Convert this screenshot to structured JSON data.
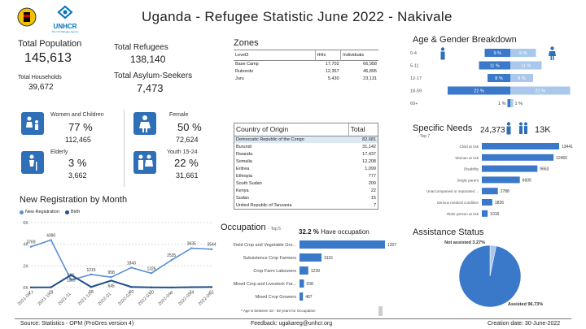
{
  "header": {
    "title": "Uganda - Refugee Statistic June 2022 - Nakivale",
    "unhcr_text": "UNHCR",
    "unhcr_sub": "The UN Refugee Agency"
  },
  "summary": {
    "total_population_label": "Total Population",
    "total_population": "145,613",
    "total_households_label": "Total Households",
    "total_households": "39,672",
    "total_refugees_label": "Total Refugees",
    "total_refugees": "138,140",
    "total_asylum_label": "Total Asylum-Seekers",
    "total_asylum": "7,473"
  },
  "demographics": {
    "women_children": {
      "label": "Women and Children",
      "pct": "77 %",
      "count": "112,465"
    },
    "elderly": {
      "label": "Elderly",
      "pct": "3 %",
      "count": "3,662"
    },
    "female": {
      "label": "Female",
      "pct": "50 %",
      "count": "72,624"
    },
    "youth": {
      "label": "Youth 15-24",
      "pct": "22 %",
      "count": "31,661"
    }
  },
  "zones": {
    "title": "Zones",
    "headers": [
      "Level3",
      "HHs",
      "Individuals"
    ],
    "rows": [
      [
        "Base Camp",
        "17,702",
        "66,958"
      ],
      [
        "Rubondo",
        "12,357",
        "46,895"
      ],
      [
        "Juru",
        "5,430",
        "23,131"
      ]
    ]
  },
  "origin": {
    "headers": [
      "Country of Origin",
      "Total"
    ],
    "rows": [
      [
        "Democratic Republic of the Congo",
        "82,681"
      ],
      [
        "Burundi",
        "31,142"
      ],
      [
        "Rwanda",
        "17,437"
      ],
      [
        "Somalia",
        "12,208"
      ],
      [
        "Eritrea",
        "1,099"
      ],
      [
        "Ethiopia",
        "777"
      ],
      [
        "South Sudan",
        "209"
      ],
      [
        "Kenya",
        "22"
      ],
      [
        "Sudan",
        "15"
      ],
      [
        "United Republic of Tanzania",
        "7"
      ]
    ]
  },
  "age_gender": {
    "title": "Age & Gender Breakdown",
    "groups": [
      "0-4",
      "5-11",
      "12-17",
      "18-59",
      "60+"
    ],
    "male": [
      9,
      11,
      8,
      22,
      1
    ],
    "female": [
      9,
      11,
      8,
      21,
      1
    ],
    "male_labels": [
      "9 %",
      "11 %",
      "8 %",
      "22 %",
      "1 %"
    ],
    "female_labels": [
      "9 %",
      "11 %",
      "8 %",
      "21 %",
      "1 %"
    ]
  },
  "specific_needs": {
    "title": "Specific Needs",
    "subtitle": "- Top 7",
    "persons": "24,373",
    "cases": "13K",
    "categories": [
      "Child at risk",
      "Woman at risk",
      "Disability",
      "Single parent",
      "Unaccompanied or separated ...",
      "Serious medical condition",
      "Older person at risk"
    ],
    "values": [
      13441,
      12466,
      9663,
      6605,
      2788,
      1826,
      1016
    ]
  },
  "registration": {
    "title": "New Registration by Month",
    "legend_new": "New Registration",
    "legend_birth": "Birth"
  },
  "chart_data": [
    {
      "type": "line",
      "title": "New Registration by Month",
      "x": [
        "2021-09",
        "2021-10",
        "2021-11",
        "2021-12",
        "2022-01",
        "2022-02",
        "2022-03",
        "2022-04",
        "2022-05",
        "2022-06"
      ],
      "yticks": [
        "0K",
        "2K",
        "4K",
        "6K"
      ],
      "ylim": [
        0,
        6000
      ],
      "series": [
        {
          "name": "New Registration",
          "values": [
            3769,
            4390,
            695,
            1215,
            958,
            1843,
            1325,
            2535,
            3635,
            3544
          ],
          "labels": [
            "3769",
            "4390",
            "695",
            "1215",
            "958",
            "1843",
            "1325",
            "2535",
            "3635",
            "3544"
          ]
        },
        {
          "name": "Birth",
          "values": [
            17,
            29,
            1159,
            58,
            645,
            60,
            20,
            6,
            34,
            51
          ],
          "labels": [
            "17",
            "29",
            "1159",
            "58",
            "645",
            "60",
            "20",
            "6",
            "34",
            "51"
          ]
        }
      ]
    },
    {
      "type": "bar",
      "title": "Occupation",
      "subtitle": "- Top 5",
      "categories": [
        "Field Crop and Vegetable Gro...",
        "Subsistence Crop Farmers",
        "Crop Farm Labourers",
        "Mixed Crop and Livestock Far...",
        "Mixed Crop Growers"
      ],
      "values": [
        12078,
        3116,
        1239,
        638,
        487
      ]
    },
    {
      "type": "pie",
      "title": "Assistance Status",
      "labels": [
        "Not assisted",
        "Assisted"
      ],
      "values": [
        3.27,
        96.73
      ],
      "label_text": [
        "Not assisted 3.27%",
        "Assisted 96.73%"
      ]
    }
  ],
  "occupation": {
    "title": "Occupation",
    "subtitle": "- Top 5",
    "have_pct": "32.2 %",
    "have_text": "Have occupation",
    "note": "* Age is between 18 - 59 years for Occupation"
  },
  "assistance": {
    "title": "Assistance Status"
  },
  "footer": {
    "source": "Source: Statistics - OPM (ProGres version 4)",
    "feedback": "Feedback: ugakareg@unhcr.org",
    "date": "Creation date: 30-June-2022"
  },
  "colors": {
    "accent": "#2e6fb7",
    "light": "#a9c8ec",
    "dark": "#1f4e8c"
  }
}
